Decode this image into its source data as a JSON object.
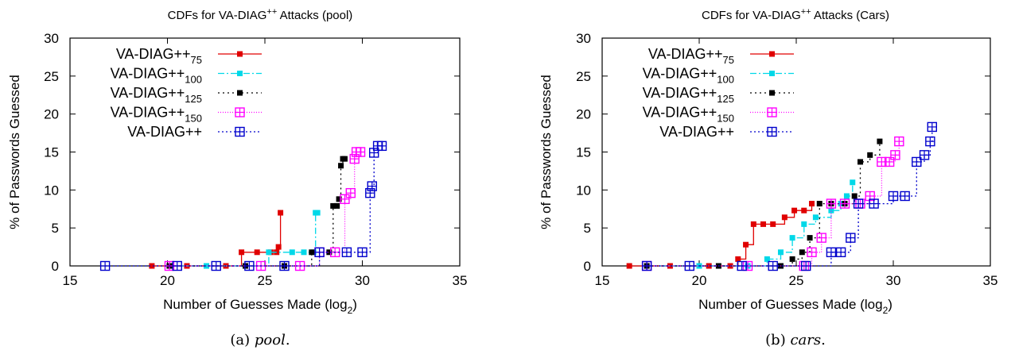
{
  "colors": {
    "VA-DIAG++75": "#e00000",
    "VA-DIAG++100": "#00d8e8",
    "VA-DIAG++125": "#000000",
    "VA-DIAG++150": "#ff00ff",
    "VA-DIAG++": "#0000cc"
  },
  "captions": [
    {
      "prefix": "(a) ",
      "name": "pool",
      "suffix": "."
    },
    {
      "prefix": "(b) ",
      "name": "cars",
      "suffix": "."
    }
  ],
  "chart_data": [
    {
      "type": "line",
      "title": "CDFs for VA-DIAG",
      "title_sup": "++",
      "title_suffix": " Attacks (pool)",
      "xlabel": "Number of Guesses Made (log",
      "xlabel_sub": "2",
      "xlabel_suffix": ")",
      "ylabel": "% of Passwords Guessed",
      "xlim": [
        15,
        35
      ],
      "ylim": [
        0,
        30
      ],
      "xticks": [
        "15",
        "20",
        "25",
        "30",
        "35"
      ],
      "yticks": [
        "0",
        "5",
        "10",
        "15",
        "20",
        "25",
        "30"
      ],
      "grid": false,
      "legend_position": "top-left",
      "series": [
        {
          "name": "VA-DIAG++",
          "sub": "75",
          "marker": "square-filled",
          "dash": "",
          "x": [
            19.2,
            21.0,
            23.0,
            23.8,
            24.6,
            25.3,
            25.6,
            25.7,
            25.8
          ],
          "y": [
            0,
            0,
            0,
            1.8,
            1.8,
            1.8,
            1.8,
            2.5,
            7.0
          ]
        },
        {
          "name": "VA-DIAG++",
          "sub": "100",
          "marker": "square-filled",
          "dash": "8,3,2,3",
          "x": [
            20.1,
            22.0,
            24.0,
            25.2,
            26.4,
            27.0,
            27.5,
            27.6,
            27.7
          ],
          "y": [
            0,
            0,
            0,
            1.8,
            1.8,
            1.8,
            1.8,
            7.0,
            7.0
          ]
        },
        {
          "name": "VA-DIAG++",
          "sub": "125",
          "marker": "square-filled",
          "dash": "2,4",
          "x": [
            20.1,
            24.0,
            26.0,
            27.4,
            28.3,
            28.5,
            28.7,
            28.8,
            28.9,
            29.0,
            29.1
          ],
          "y": [
            0,
            0,
            0,
            1.8,
            1.8,
            7.9,
            7.9,
            8.8,
            13.2,
            14.1,
            14.1
          ]
        },
        {
          "name": "VA-DIAG++",
          "sub": "150",
          "marker": "square-plus",
          "dash": "1,2",
          "x": [
            20.1,
            24.8,
            26.8,
            27.8,
            28.6,
            29.1,
            29.4,
            29.6,
            29.7,
            29.9
          ],
          "y": [
            0,
            0,
            0,
            1.8,
            1.8,
            8.8,
            9.6,
            14.1,
            15.0,
            15.0
          ]
        },
        {
          "name": "VA-DIAG++",
          "sub": "",
          "marker": "square-plus",
          "dash": "2,3",
          "x": [
            16.8,
            20.5,
            22.5,
            24.2,
            26.0,
            27.8,
            29.2,
            30.0,
            30.4,
            30.5,
            30.6,
            30.8,
            31.0
          ],
          "y": [
            0,
            0,
            0,
            0,
            0,
            1.8,
            1.8,
            1.8,
            9.6,
            10.5,
            14.9,
            15.8,
            15.8
          ]
        }
      ]
    },
    {
      "type": "line",
      "title": "CDFs for VA-DIAG",
      "title_sup": "++",
      "title_suffix": " Attacks (Cars)",
      "xlabel": "Number of Guesses Made (log",
      "xlabel_sub": "2",
      "xlabel_suffix": ")",
      "ylabel": "% of Passwords Guessed",
      "xlim": [
        15,
        35
      ],
      "ylim": [
        0,
        30
      ],
      "xticks": [
        "15",
        "20",
        "25",
        "30",
        "35"
      ],
      "yticks": [
        "0",
        "5",
        "10",
        "15",
        "20",
        "25",
        "30"
      ],
      "grid": false,
      "legend_position": "top-left",
      "series": [
        {
          "name": "VA-DIAG++",
          "sub": "75",
          "marker": "square-filled",
          "dash": "",
          "x": [
            16.4,
            18.5,
            20.5,
            21.6,
            22.0,
            22.4,
            22.8,
            23.3,
            23.8,
            24.4,
            24.9,
            25.4,
            25.8
          ],
          "y": [
            0,
            0,
            0,
            0,
            0.9,
            2.8,
            5.5,
            5.5,
            5.5,
            6.4,
            7.3,
            7.3,
            8.2
          ]
        },
        {
          "name": "VA-DIAG++",
          "sub": "100",
          "marker": "square-filled",
          "dash": "8,3,2,3",
          "x": [
            17.3,
            20.0,
            22.5,
            23.5,
            24.2,
            24.8,
            25.4,
            26.0,
            26.8,
            27.3,
            27.6,
            27.9
          ],
          "y": [
            0,
            0,
            0,
            0.9,
            1.8,
            3.7,
            5.5,
            6.4,
            7.3,
            8.2,
            9.2,
            11.0
          ]
        },
        {
          "name": "VA-DIAG++",
          "sub": "125",
          "marker": "square-filled",
          "dash": "2,4",
          "x": [
            17.3,
            21.0,
            24.2,
            24.8,
            25.3,
            25.7,
            26.2,
            26.8,
            27.5,
            28.0,
            28.3,
            28.8,
            29.3
          ],
          "y": [
            0,
            0,
            0,
            0.9,
            1.8,
            3.7,
            8.2,
            8.2,
            8.2,
            9.2,
            13.7,
            14.6,
            16.4
          ]
        },
        {
          "name": "VA-DIAG++",
          "sub": "150",
          "marker": "square-plus",
          "dash": "1,2",
          "x": [
            17.3,
            22.5,
            25.4,
            25.8,
            26.3,
            26.8,
            27.5,
            28.3,
            28.8,
            29.4,
            29.8,
            30.1,
            30.3
          ],
          "y": [
            0,
            0,
            0,
            1.8,
            3.7,
            8.2,
            8.2,
            8.2,
            9.2,
            13.7,
            13.7,
            14.6,
            16.4
          ]
        },
        {
          "name": "VA-DIAG++",
          "sub": "",
          "marker": "square-plus",
          "dash": "2,3",
          "x": [
            17.3,
            19.5,
            22.2,
            23.8,
            25.5,
            26.8,
            27.3,
            27.8,
            28.2,
            29.0,
            30.0,
            30.6,
            31.2,
            31.6,
            31.9,
            32.0
          ],
          "y": [
            0,
            0,
            0,
            0,
            0,
            1.8,
            1.8,
            3.7,
            8.2,
            8.2,
            9.2,
            9.2,
            13.7,
            14.6,
            16.4,
            18.3
          ]
        }
      ]
    }
  ]
}
